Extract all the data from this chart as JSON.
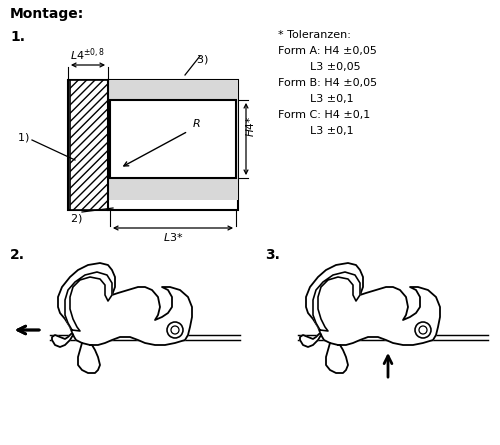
{
  "bg_color": "#ffffff",
  "text_color": "#000000",
  "gray_fill": "#d8d8d8",
  "title": "Montage:",
  "label1": "1.",
  "label2": "2.",
  "label3": "3.",
  "tol_lines": [
    "* Toleranzen:",
    "Form A: H4 ±0,05",
    "L3 ±0,05",
    "Form B: H4 ±0,05",
    "L3 ±0,1",
    "Form C: H4 ±0,1",
    "L3 ±0,1"
  ],
  "tol_indent": [
    false,
    false,
    true,
    false,
    true,
    false,
    true
  ]
}
